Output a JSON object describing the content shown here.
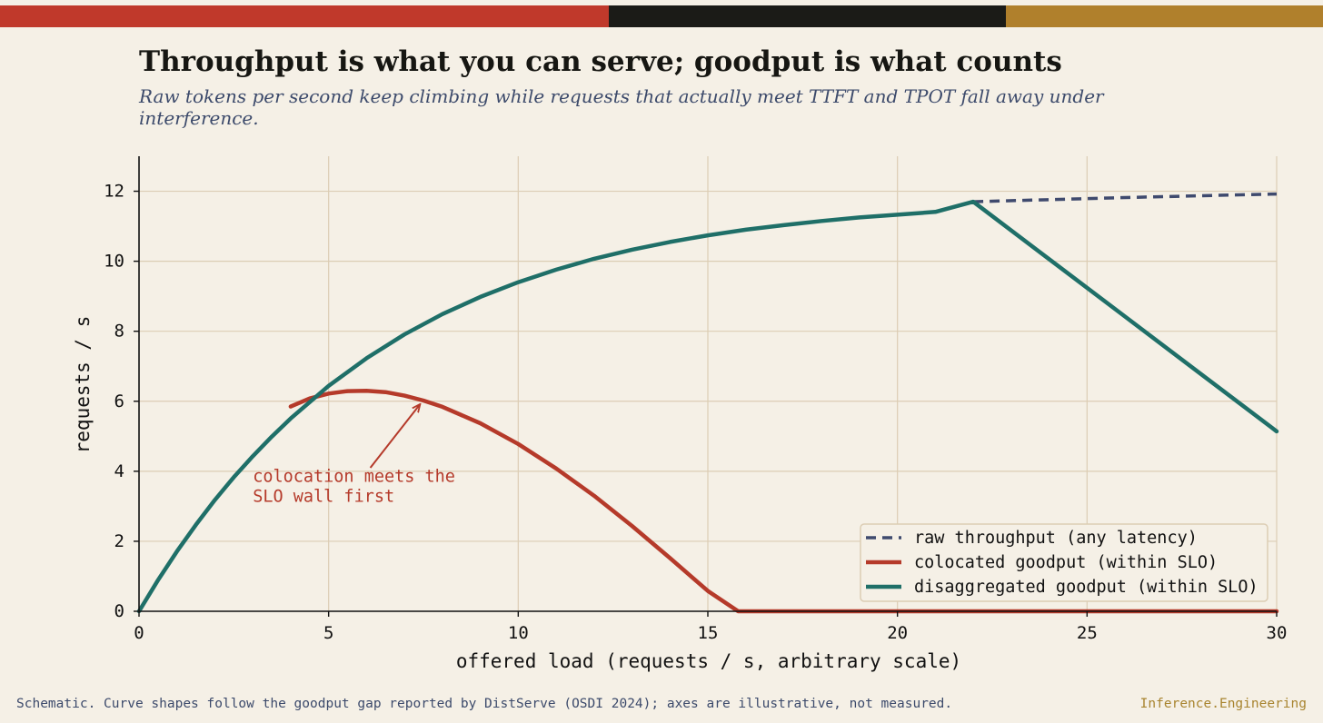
{
  "colors": {
    "background": "#f5f0e6",
    "bar_red": "#c0392b",
    "bar_black": "#1b1b17",
    "bar_gold": "#b0802c",
    "raw": "#3f4a6e",
    "colocated": "#b53a2a",
    "disaggregated": "#1f6f68",
    "grid": "#dccdb4",
    "axis": "#111111"
  },
  "header": {
    "title": "Throughput is what you can serve; goodput is what counts",
    "subtitle": "Raw tokens per second keep climbing while requests that actually meet TTFT and TPOT fall away under interference."
  },
  "chart_data": {
    "type": "line",
    "xlabel": "offered load  (requests / s, arbitrary scale)",
    "ylabel": "requests / s",
    "xlim": [
      0,
      30
    ],
    "ylim": [
      0,
      13
    ],
    "xticks": [
      0,
      5,
      10,
      15,
      20,
      25,
      30
    ],
    "yticks": [
      0,
      2,
      4,
      6,
      8,
      10,
      12
    ],
    "grid": true,
    "legend_position": "bottom-right",
    "series": [
      {
        "name": "raw throughput (any latency)",
        "style": "dashed",
        "color": "#3f4a6e",
        "x": [
          22,
          24,
          26,
          28,
          30
        ],
        "y": [
          11.7,
          11.76,
          11.82,
          11.87,
          11.92
        ]
      },
      {
        "name": "colocated goodput (within SLO)",
        "style": "solid",
        "color": "#b53a2a",
        "x": [
          4,
          4.5,
          5,
          5.5,
          6,
          6.5,
          7,
          7.5,
          8,
          9,
          10,
          11,
          12,
          13,
          14,
          15,
          15.8,
          17,
          20,
          25,
          30
        ],
        "y": [
          5.85,
          6.08,
          6.22,
          6.29,
          6.3,
          6.26,
          6.16,
          6.02,
          5.84,
          5.37,
          4.78,
          4.08,
          3.3,
          2.44,
          1.52,
          0.58,
          0,
          0,
          0,
          0,
          0
        ]
      },
      {
        "name": "disaggregated goodput (within SLO)",
        "style": "solid",
        "color": "#1f6f68",
        "x": [
          0,
          0.5,
          1,
          1.5,
          2,
          2.5,
          3,
          3.5,
          4,
          5,
          6,
          7,
          8,
          9,
          10,
          11,
          12,
          13,
          14,
          15,
          16,
          17,
          18,
          19,
          20,
          21,
          22,
          24,
          26,
          28,
          30
        ],
        "y": [
          0,
          0.89,
          1.71,
          2.47,
          3.18,
          3.83,
          4.43,
          4.99,
          5.51,
          6.44,
          7.23,
          7.91,
          8.49,
          8.98,
          9.4,
          9.76,
          10.07,
          10.33,
          10.55,
          10.74,
          10.9,
          11.03,
          11.15,
          11.25,
          11.33,
          11.41,
          11.7,
          10.06,
          8.42,
          6.78,
          5.14
        ]
      }
    ],
    "annotations": [
      {
        "text_lines": [
          "colocation meets the",
          "SLO wall first"
        ],
        "text_x": 3.0,
        "text_y": 3.7,
        "arrow_from": [
          6.1,
          4.1
        ],
        "arrow_to": [
          7.4,
          5.9
        ],
        "color": "#b53a2a"
      }
    ]
  },
  "footer": {
    "note": "Schematic. Curve shapes follow the goodput gap reported by DistServe (OSDI 2024); axes are illustrative, not measured.",
    "brand": "Inference.Engineering"
  }
}
